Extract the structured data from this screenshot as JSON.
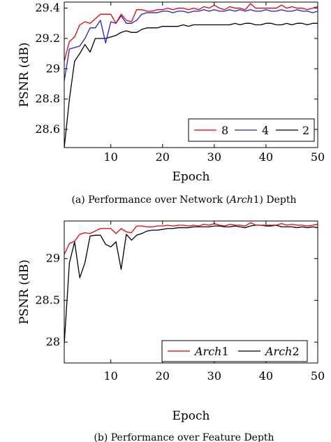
{
  "chart_data": [
    {
      "type": "line",
      "caption": "(a) Performance over Network (Arch1) Depth",
      "caption_parts": {
        "prefix": "(a) Performance over Network (",
        "italic": "Arch",
        "suffix_num": "1",
        "rest": ") Depth"
      },
      "xlabel": "Epoch",
      "ylabel": "PSNR (dB)",
      "xlim": [
        1,
        50
      ],
      "ylim": [
        28.48,
        29.44
      ],
      "xticks": [
        10,
        20,
        30,
        40,
        50
      ],
      "yticks": [
        28.6,
        28.8,
        29,
        29.2,
        29.4
      ],
      "ytick_labels": [
        "28.6",
        "28.8",
        "29",
        "29.2",
        "29.4"
      ],
      "legend_position": "bottom-right",
      "x": [
        1,
        2,
        3,
        4,
        5,
        6,
        7,
        8,
        9,
        10,
        11,
        12,
        13,
        14,
        15,
        16,
        17,
        18,
        19,
        20,
        21,
        22,
        23,
        24,
        25,
        26,
        27,
        28,
        29,
        30,
        31,
        32,
        33,
        34,
        35,
        36,
        37,
        38,
        39,
        40,
        41,
        42,
        43,
        44,
        45,
        46,
        47,
        48,
        49,
        50
      ],
      "series": [
        {
          "name": "8",
          "color": "#e8000b",
          "values": [
            29.05,
            29.18,
            29.21,
            29.29,
            29.31,
            29.3,
            29.33,
            29.36,
            29.36,
            29.36,
            29.3,
            29.36,
            29.32,
            29.31,
            29.39,
            29.39,
            29.38,
            29.38,
            29.39,
            29.39,
            29.4,
            29.39,
            29.4,
            29.4,
            29.39,
            29.4,
            29.39,
            29.41,
            29.4,
            29.42,
            29.4,
            29.39,
            29.41,
            29.4,
            29.4,
            29.39,
            29.43,
            29.4,
            29.4,
            29.4,
            29.4,
            29.4,
            29.42,
            29.4,
            29.41,
            29.4,
            29.4,
            29.39,
            29.4,
            29.41
          ]
        },
        {
          "name": "4",
          "color": "#1f1fd6",
          "values": [
            28.92,
            29.13,
            29.14,
            29.15,
            29.2,
            29.27,
            29.27,
            29.32,
            29.17,
            29.31,
            29.3,
            29.35,
            29.3,
            29.3,
            29.32,
            29.36,
            29.37,
            29.37,
            29.37,
            29.38,
            29.38,
            29.37,
            29.38,
            29.38,
            29.37,
            29.38,
            29.38,
            29.39,
            29.38,
            29.39,
            29.38,
            29.38,
            29.39,
            29.38,
            29.39,
            29.38,
            29.39,
            29.38,
            29.38,
            29.39,
            29.38,
            29.38,
            29.39,
            29.38,
            29.38,
            29.39,
            29.38,
            29.38,
            29.37,
            29.38
          ]
        },
        {
          "name": "2",
          "color": "#000000",
          "values": [
            28.48,
            28.8,
            29.05,
            29.1,
            29.16,
            29.11,
            29.2,
            29.2,
            29.2,
            29.21,
            29.22,
            29.24,
            29.25,
            29.24,
            29.24,
            29.26,
            29.27,
            29.27,
            29.27,
            29.28,
            29.28,
            29.28,
            29.28,
            29.29,
            29.28,
            29.29,
            29.29,
            29.29,
            29.29,
            29.29,
            29.29,
            29.29,
            29.29,
            29.3,
            29.29,
            29.3,
            29.3,
            29.29,
            29.29,
            29.3,
            29.3,
            29.29,
            29.29,
            29.3,
            29.29,
            29.3,
            29.3,
            29.29,
            29.3,
            29.3
          ]
        }
      ]
    },
    {
      "type": "line",
      "caption": "(b) Performance over Feature Depth",
      "xlabel": "Epoch",
      "ylabel": "PSNR (dB)",
      "xlim": [
        1,
        50
      ],
      "ylim": [
        27.75,
        29.45
      ],
      "xticks": [
        10,
        20,
        30,
        40,
        50
      ],
      "yticks": [
        28,
        28.5,
        29
      ],
      "ytick_labels": [
        "28",
        "28.5",
        "29"
      ],
      "legend_position": "bottom-right",
      "x": [
        1,
        2,
        3,
        4,
        5,
        6,
        7,
        8,
        9,
        10,
        11,
        12,
        13,
        14,
        15,
        16,
        17,
        18,
        19,
        20,
        21,
        22,
        23,
        24,
        25,
        26,
        27,
        28,
        29,
        30,
        31,
        32,
        33,
        34,
        35,
        36,
        37,
        38,
        39,
        40,
        41,
        42,
        43,
        44,
        45,
        46,
        47,
        48,
        49,
        50
      ],
      "series": [
        {
          "name": "Arch1",
          "name_italic": "Arch",
          "name_num": "1",
          "color": "#e8000b",
          "values": [
            29.05,
            29.18,
            29.21,
            29.29,
            29.31,
            29.3,
            29.33,
            29.36,
            29.36,
            29.36,
            29.3,
            29.36,
            29.32,
            29.31,
            29.39,
            29.39,
            29.38,
            29.38,
            29.39,
            29.39,
            29.4,
            29.39,
            29.4,
            29.4,
            29.39,
            29.4,
            29.39,
            29.41,
            29.4,
            29.42,
            29.4,
            29.39,
            29.41,
            29.4,
            29.4,
            29.39,
            29.43,
            29.4,
            29.4,
            29.4,
            29.4,
            29.4,
            29.42,
            29.4,
            29.41,
            29.4,
            29.4,
            29.39,
            29.4,
            29.41
          ]
        },
        {
          "name": "Arch2",
          "name_italic": "Arch",
          "name_num": "2",
          "color": "#000000",
          "values": [
            27.98,
            28.95,
            29.2,
            28.77,
            28.95,
            29.27,
            29.28,
            29.28,
            29.17,
            29.14,
            29.2,
            28.87,
            29.29,
            29.22,
            29.28,
            29.3,
            29.33,
            29.34,
            29.34,
            29.35,
            29.36,
            29.36,
            29.37,
            29.37,
            29.37,
            29.38,
            29.38,
            29.38,
            29.38,
            29.39,
            29.39,
            29.38,
            29.38,
            29.39,
            29.38,
            29.37,
            29.39,
            29.4,
            29.4,
            29.39,
            29.39,
            29.4,
            29.38,
            29.38,
            29.38,
            29.37,
            29.38,
            29.37,
            29.38,
            29.37
          ]
        }
      ]
    }
  ]
}
